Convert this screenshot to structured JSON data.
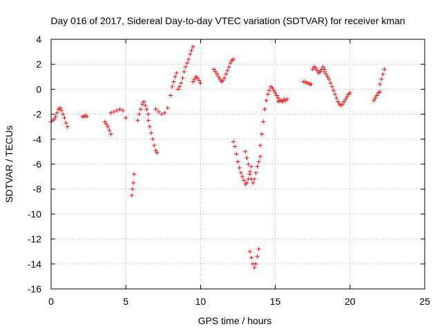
{
  "chart_data": {
    "type": "scatter",
    "title": "Day 016 of 2017, Sidereal Day-to-day VTEC variation (SDTVAR) for receiver kman",
    "xlabel": "GPS time / hours",
    "ylabel": "SDTVAR / TECUs",
    "xlim": [
      0,
      25
    ],
    "ylim": [
      -16,
      4
    ],
    "x_ticks": [
      0,
      5,
      10,
      15,
      20,
      25
    ],
    "y_ticks": [
      -16,
      -14,
      -12,
      -10,
      -8,
      -6,
      -4,
      -2,
      0,
      2,
      4
    ],
    "grid": true,
    "marker": "plus",
    "color": "#ff0000",
    "segments": [
      {
        "x": [
          0.0,
          0.1,
          0.2,
          0.3,
          0.4,
          0.5,
          0.6,
          0.7,
          0.8,
          0.9,
          1.0,
          1.1
        ],
        "y": [
          -2.6,
          -2.5,
          -2.4,
          -2.2,
          -1.9,
          -1.6,
          -1.5,
          -1.7,
          -2.0,
          -2.3,
          -2.7,
          -3.0
        ]
      },
      {
        "x": [
          2.1,
          2.2,
          2.3,
          2.4
        ],
        "y": [
          -2.2,
          -2.2,
          -2.1,
          -2.2
        ]
      },
      {
        "x": [
          3.6,
          3.7,
          3.8,
          3.9,
          4.0
        ],
        "y": [
          -2.6,
          -2.8,
          -3.0,
          -3.3,
          -3.6
        ]
      },
      {
        "x": [
          4.0,
          4.2,
          4.4,
          4.6,
          4.8,
          5.0
        ],
        "y": [
          -1.9,
          -1.8,
          -1.7,
          -1.6,
          -1.7,
          -2.3
        ]
      },
      {
        "x": [
          5.4,
          5.45,
          5.5,
          5.55
        ],
        "y": [
          -8.5,
          -8.0,
          -7.5,
          -6.8
        ]
      },
      {
        "x": [
          5.8,
          5.9,
          6.0,
          6.1,
          6.2,
          6.3,
          6.4,
          6.5
        ],
        "y": [
          -2.5,
          -2.0,
          -1.6,
          -1.2,
          -1.0,
          -1.3,
          -1.6,
          -2.0
        ]
      },
      {
        "x": [
          6.5,
          6.6,
          6.7,
          6.8,
          6.9,
          7.0,
          7.1
        ],
        "y": [
          -2.5,
          -3.0,
          -3.5,
          -4.0,
          -4.5,
          -4.9,
          -5.1
        ]
      },
      {
        "x": [
          7.0,
          7.2,
          7.4,
          7.6,
          7.8,
          8.0,
          8.1,
          8.2,
          8.3,
          8.4
        ],
        "y": [
          -1.6,
          -1.8,
          -2.0,
          -1.9,
          -1.5,
          -0.5,
          0.2,
          0.6,
          1.0,
          1.3
        ]
      },
      {
        "x": [
          8.5,
          8.6,
          8.7,
          8.8,
          8.9,
          9.0,
          9.1,
          9.2,
          9.3,
          9.4,
          9.5
        ],
        "y": [
          0.0,
          0.2,
          0.5,
          0.9,
          1.4,
          1.8,
          2.1,
          2.4,
          2.8,
          3.1,
          3.4
        ]
      },
      {
        "x": [
          9.5,
          9.6,
          9.7,
          9.8,
          9.9,
          10.0
        ],
        "y": [
          0.6,
          0.8,
          1.0,
          0.9,
          0.7,
          0.5
        ]
      },
      {
        "x": [
          10.9,
          11.0,
          11.1,
          11.2,
          11.3,
          11.4,
          11.5,
          11.6,
          11.7,
          11.8,
          11.9,
          12.0,
          12.1,
          12.2
        ],
        "y": [
          1.6,
          1.4,
          1.2,
          1.0,
          0.8,
          0.6,
          0.7,
          0.9,
          1.2,
          1.5,
          1.8,
          2.1,
          2.3,
          2.4
        ]
      },
      {
        "x": [
          12.2,
          12.3,
          12.4,
          12.5,
          12.6,
          12.7,
          12.8,
          12.9,
          13.0,
          13.1,
          13.2,
          13.3,
          13.4
        ],
        "y": [
          -4.2,
          -4.6,
          -5.2,
          -5.8,
          -6.3,
          -6.7,
          -7.0,
          -7.3,
          -7.6,
          -7.5,
          -7.2,
          -6.8,
          -6.2
        ]
      },
      {
        "x": [
          13.0,
          13.1,
          13.2,
          13.3,
          13.4,
          13.5,
          13.6,
          13.7,
          13.8,
          13.9,
          14.0
        ],
        "y": [
          -5.0,
          -5.5,
          -6.0,
          -6.6,
          -7.2,
          -7.5,
          -7.2,
          -6.7,
          -6.2,
          -5.8,
          -5.4
        ]
      },
      {
        "x": [
          13.3,
          13.4,
          13.5,
          13.6,
          13.7,
          13.8,
          13.9
        ],
        "y": [
          -13.0,
          -13.5,
          -14.0,
          -14.3,
          -14.0,
          -13.4,
          -12.8
        ]
      },
      {
        "x": [
          14.0,
          14.1,
          14.2,
          14.3,
          14.4,
          14.5,
          14.6,
          14.7,
          14.8,
          14.9,
          15.0,
          15.1,
          15.2
        ],
        "y": [
          -4.5,
          -3.6,
          -2.6,
          -1.6,
          -0.9,
          -0.4,
          -0.1,
          0.2,
          0.1,
          -0.1,
          -0.3,
          -0.5,
          -0.7
        ]
      },
      {
        "x": [
          15.2,
          15.3,
          15.4,
          15.5,
          15.6,
          15.7,
          15.8
        ],
        "y": [
          -1.0,
          -0.9,
          -0.9,
          -1.0,
          -0.8,
          -0.9,
          -0.8
        ]
      },
      {
        "x": [
          16.9,
          17.0,
          17.1,
          17.2,
          17.3,
          17.4
        ],
        "y": [
          0.6,
          0.6,
          0.5,
          0.5,
          0.4,
          0.4
        ]
      },
      {
        "x": [
          17.5,
          17.6,
          17.7,
          17.8,
          17.9,
          18.0,
          18.1,
          18.2,
          18.3
        ],
        "y": [
          1.6,
          1.8,
          1.7,
          1.5,
          1.3,
          1.4,
          1.6,
          1.8,
          1.6
        ]
      },
      {
        "x": [
          18.3,
          18.4,
          18.5,
          18.6,
          18.7,
          18.8,
          18.9,
          19.0,
          19.1,
          19.2,
          19.3,
          19.4,
          19.5,
          19.6,
          19.7,
          19.8,
          19.9,
          20.0
        ],
        "y": [
          1.4,
          1.2,
          1.0,
          0.8,
          0.5,
          0.2,
          -0.1,
          -0.4,
          -0.7,
          -1.0,
          -1.2,
          -1.3,
          -1.2,
          -1.0,
          -0.8,
          -0.6,
          -0.4,
          -0.3
        ]
      },
      {
        "x": [
          21.6,
          21.7,
          21.8,
          21.9,
          22.0
        ],
        "y": [
          -0.9,
          -0.7,
          -0.5,
          -0.3,
          -0.2
        ]
      },
      {
        "x": [
          22.0,
          22.1,
          22.2,
          22.3
        ],
        "y": [
          0.4,
          0.8,
          1.2,
          1.6
        ]
      }
    ]
  }
}
